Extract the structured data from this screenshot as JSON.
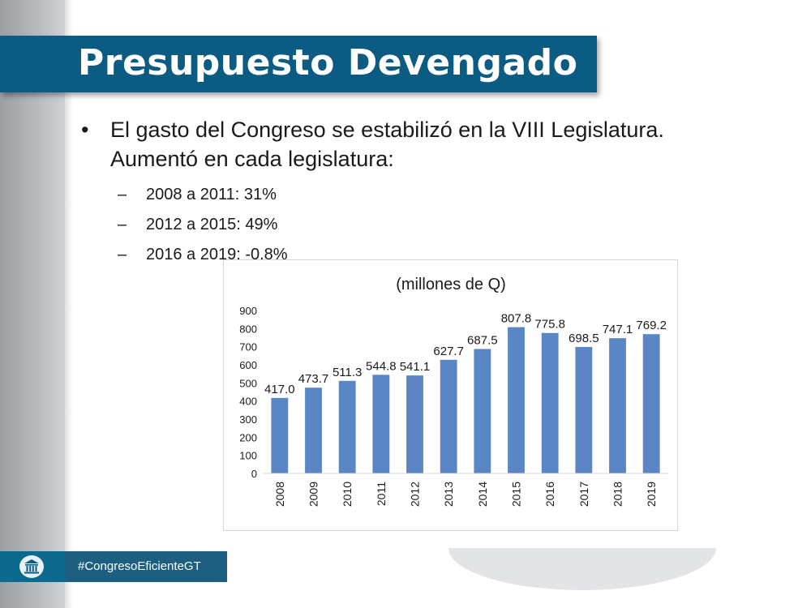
{
  "title": "Presupuesto Devengado",
  "bullet": {
    "line1": "El gasto del Congreso se estabilizó en la VIII Legislatura.",
    "line2": "Aumentó en cada legislatura:"
  },
  "subitems": [
    "2008 a 2011: 31%",
    "2012 a 2015: 49%",
    "2016 a 2019: -0.8%"
  ],
  "footer": {
    "hashtag": "#CongresoEficienteGT",
    "icon": "congress-building-icon"
  },
  "colors": {
    "title_bar": "#0c5b82",
    "bar": "#5b86c5",
    "footer": "#1d5f80"
  },
  "chart_data": {
    "type": "bar",
    "title": "(millones de Q)",
    "categories": [
      "2008",
      "2009",
      "2010",
      "2011",
      "2012",
      "2013",
      "2014",
      "2015",
      "2016",
      "2017",
      "2018",
      "2019"
    ],
    "values": [
      417.0,
      473.7,
      511.3,
      544.8,
      541.1,
      627.7,
      687.5,
      807.8,
      775.8,
      698.5,
      747.1,
      769.2
    ],
    "labels": [
      "417.0",
      "473.7",
      "511.3",
      "544.8",
      "541.1",
      "627.7",
      "687.5",
      "807.8",
      "775.8",
      "698.5",
      "747.1",
      "769.2"
    ],
    "ylim": [
      0,
      900
    ],
    "yticks": [
      0,
      100,
      200,
      300,
      400,
      500,
      600,
      700,
      800,
      900
    ],
    "xlabel": "",
    "ylabel": "",
    "grid": false,
    "legend": "none"
  }
}
